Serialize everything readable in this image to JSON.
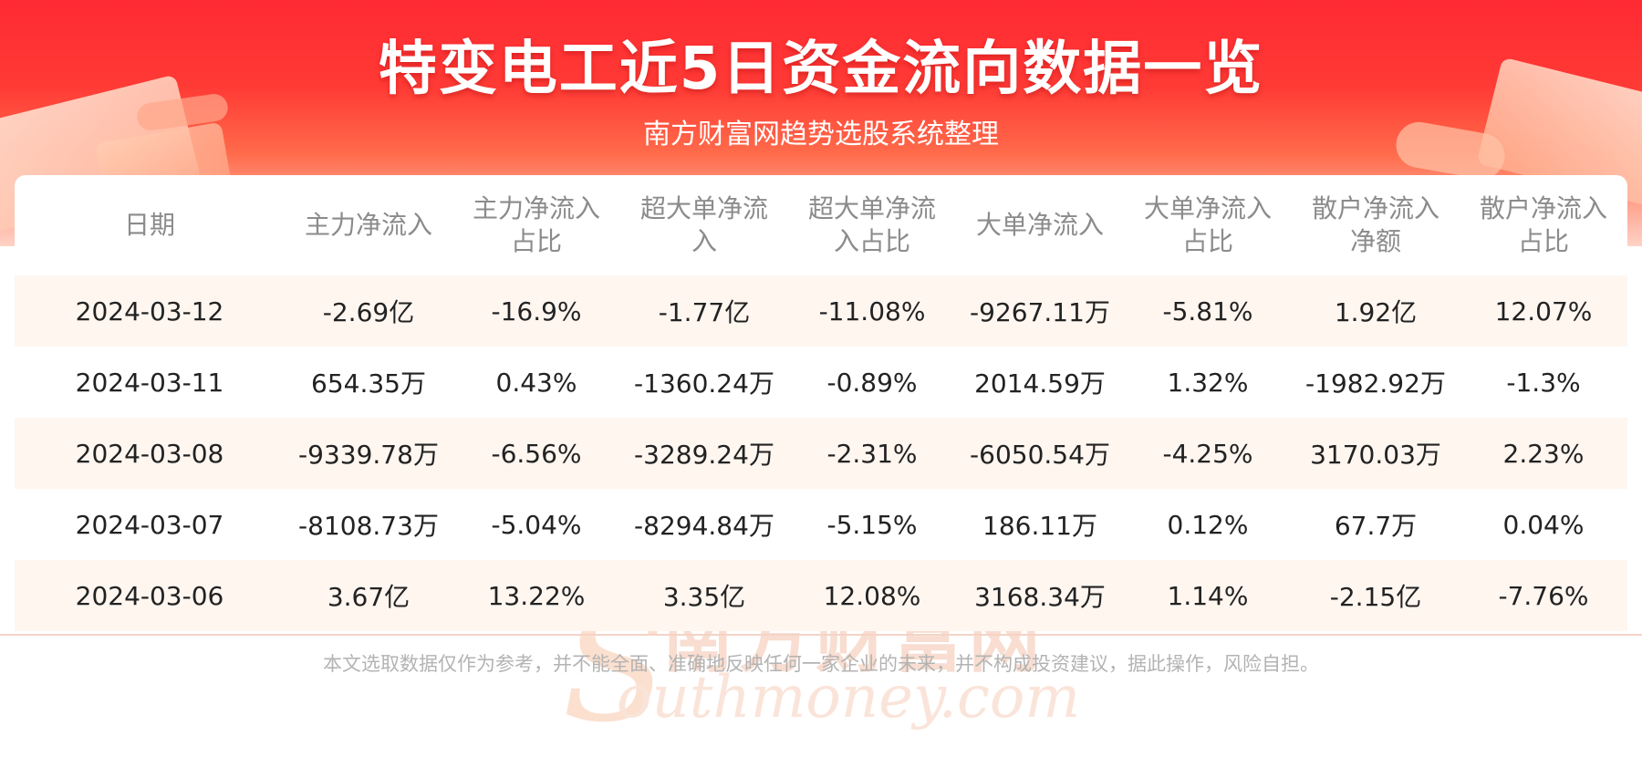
{
  "header": {
    "title": "特变电工近5日资金流向数据一览",
    "subtitle": "南方财富网趋势选股系统整理"
  },
  "watermark": {
    "chinese": "南方财富网",
    "english": "outhmoney.com",
    "initial": "S"
  },
  "chart_data": {
    "type": "table",
    "columns": [
      "日期",
      "主力净流入",
      "主力净流入占比",
      "超大单净流入",
      "超大单净流入占比",
      "大单净流入",
      "大单净流入占比",
      "散户净流入净额",
      "散户净流入占比"
    ],
    "rows": [
      [
        "2024-03-12",
        "-2.69亿",
        "-16.9%",
        "-1.77亿",
        "-11.08%",
        "-9267.11万",
        "-5.81%",
        "1.92亿",
        "12.07%"
      ],
      [
        "2024-03-11",
        "654.35万",
        "0.43%",
        "-1360.24万",
        "-0.89%",
        "2014.59万",
        "1.32%",
        "-1982.92万",
        "-1.3%"
      ],
      [
        "2024-03-08",
        "-9339.78万",
        "-6.56%",
        "-3289.24万",
        "-2.31%",
        "-6050.54万",
        "-4.25%",
        "3170.03万",
        "2.23%"
      ],
      [
        "2024-03-07",
        "-8108.73万",
        "-5.04%",
        "-8294.84万",
        "-5.15%",
        "186.11万",
        "0.12%",
        "67.7万",
        "0.04%"
      ],
      [
        "2024-03-06",
        "3.67亿",
        "13.22%",
        "3.35亿",
        "12.08%",
        "3168.34万",
        "1.14%",
        "-2.15亿",
        "-7.76%"
      ]
    ]
  },
  "footer": {
    "disclaimer": "本文选取数据仅作为参考，并不能全面、准确地反映任何一家企业的未来，并不构成投资建议，据此操作，风险自担。"
  },
  "colors": {
    "banner_red": "#ff2a33",
    "row_alt_background": "#fff6f0",
    "header_text": "#8b8b8b",
    "cell_text": "#222222"
  }
}
